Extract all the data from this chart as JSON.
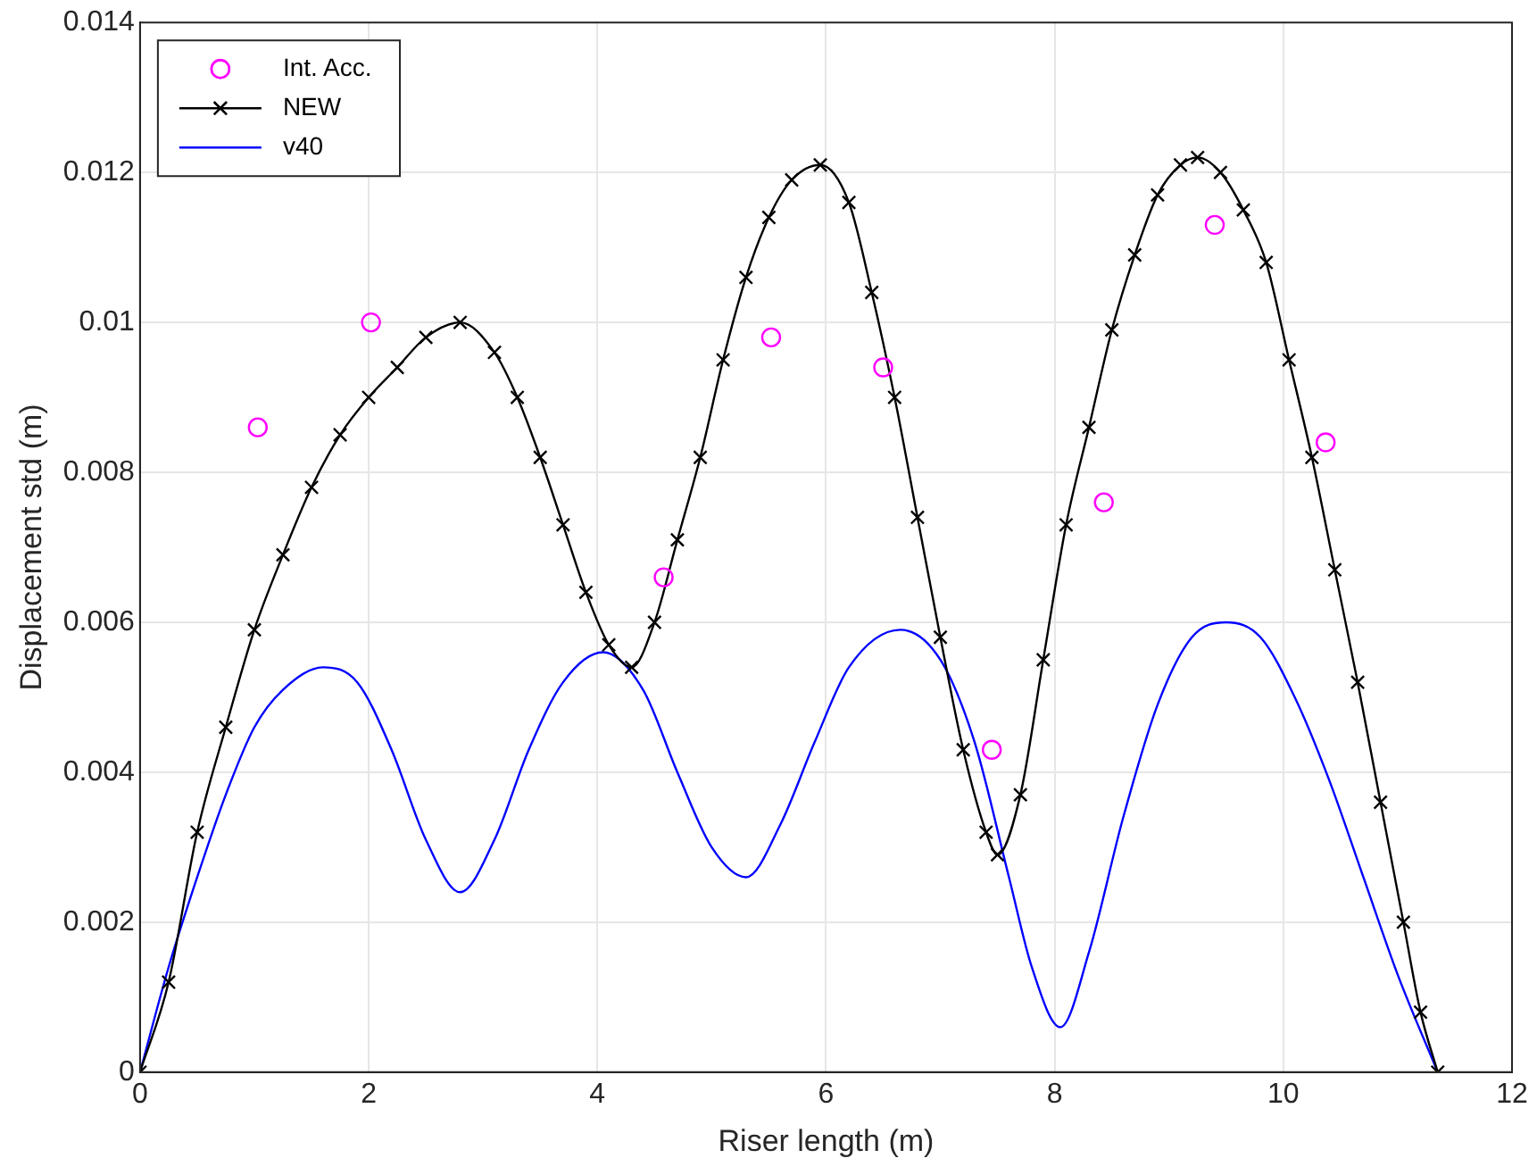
{
  "chart_data": {
    "type": "line",
    "xlabel": "Riser length (m)",
    "ylabel": "Displacement std (m)",
    "xlim": [
      0,
      12
    ],
    "xticks": [
      0,
      2,
      4,
      6,
      8,
      10,
      12
    ],
    "ylim": [
      0,
      0.014
    ],
    "yticks": [
      0,
      0.002,
      0.004,
      0.006,
      0.008,
      0.01,
      0.012,
      0.014
    ],
    "grid": true,
    "legend": "top left",
    "series": [
      {
        "name": "Int. Acc.",
        "type": "scatter",
        "marker": "circle",
        "color": "#ff00ff",
        "x": [
          1.03,
          2.02,
          4.58,
          5.52,
          6.5,
          7.45,
          8.43,
          9.4,
          10.37
        ],
        "values": [
          0.0086,
          0.01,
          0.0066,
          0.0098,
          0.0094,
          0.0043,
          0.0076,
          0.0113,
          0.0084
        ]
      },
      {
        "name": "NEW",
        "type": "line",
        "marker": "cross",
        "color": "#000000",
        "x": [
          0,
          0.25,
          0.5,
          0.75,
          1,
          1.25,
          1.5,
          1.75,
          2,
          2.25,
          2.5,
          2.8,
          3.1,
          3.3,
          3.5,
          3.7,
          3.9,
          4.1,
          4.3,
          4.5,
          4.7,
          4.9,
          5.1,
          5.3,
          5.5,
          5.7,
          5.95,
          6.2,
          6.4,
          6.6,
          6.8,
          7,
          7.2,
          7.4,
          7.5,
          7.7,
          7.9,
          8.1,
          8.3,
          8.5,
          8.7,
          8.9,
          9.1,
          9.25,
          9.45,
          9.65,
          9.85,
          10.05,
          10.25,
          10.45,
          10.65,
          10.85,
          11.05,
          11.2,
          11.35
        ],
        "values": [
          0,
          0.0012,
          0.0032,
          0.0046,
          0.0059,
          0.0069,
          0.0078,
          0.0085,
          0.009,
          0.0094,
          0.0098,
          0.01,
          0.0096,
          0.009,
          0.0082,
          0.0073,
          0.0064,
          0.0057,
          0.0054,
          0.006,
          0.0071,
          0.0082,
          0.0095,
          0.0106,
          0.0114,
          0.0119,
          0.0121,
          0.0116,
          0.0104,
          0.009,
          0.0074,
          0.0058,
          0.0043,
          0.0032,
          0.0029,
          0.0037,
          0.0055,
          0.0073,
          0.0086,
          0.0099,
          0.0109,
          0.0117,
          0.0121,
          0.0122,
          0.012,
          0.0115,
          0.0108,
          0.0095,
          0.0082,
          0.0067,
          0.0052,
          0.0036,
          0.002,
          0.0008,
          0
        ]
      },
      {
        "name": "v40",
        "type": "line",
        "marker": "none",
        "color": "#0000ff",
        "x": [
          0,
          0.25,
          0.5,
          0.75,
          1,
          1.25,
          1.6,
          1.9,
          2.2,
          2.5,
          2.8,
          3.1,
          3.4,
          3.7,
          4.05,
          4.4,
          4.7,
          5,
          5.3,
          5.6,
          5.9,
          6.2,
          6.65,
          7,
          7.3,
          7.6,
          7.8,
          8.05,
          8.3,
          8.6,
          8.9,
          9.2,
          9.5,
          9.8,
          10.1,
          10.4,
          10.7,
          11,
          11.35
        ],
        "values": [
          0,
          0.0014,
          0.0026,
          0.0037,
          0.0046,
          0.0051,
          0.0054,
          0.0052,
          0.0043,
          0.0031,
          0.0024,
          0.0031,
          0.0043,
          0.0052,
          0.0056,
          0.0051,
          0.004,
          0.003,
          0.0026,
          0.0033,
          0.0044,
          0.0054,
          0.0059,
          0.0055,
          0.0044,
          0.0026,
          0.0014,
          0.0006,
          0.0016,
          0.0034,
          0.0049,
          0.0058,
          0.006,
          0.0058,
          0.005,
          0.0039,
          0.0026,
          0.0013,
          0
        ]
      }
    ]
  }
}
